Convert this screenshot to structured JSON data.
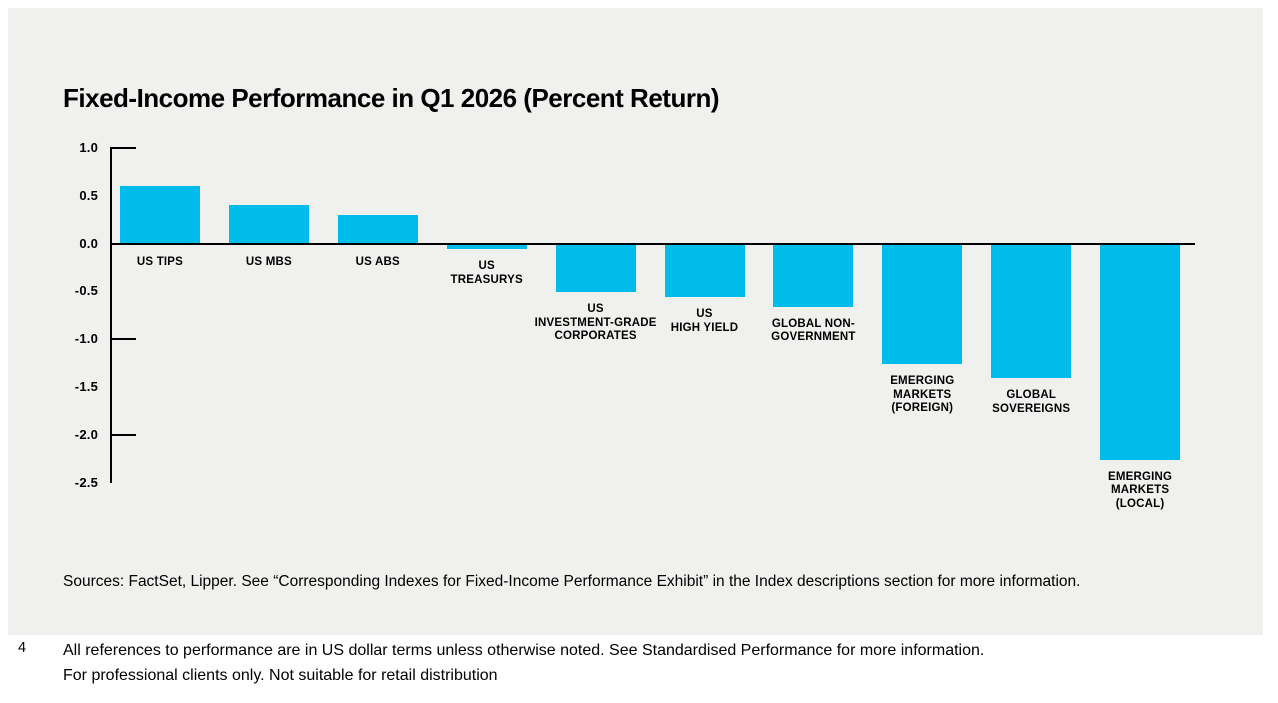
{
  "colors": {
    "panel_bg": "#F0F0EE",
    "page_bg": "#FFFFFF",
    "bar": "#00BCEB",
    "axis": "#000000",
    "text": "#000000"
  },
  "chart_data": {
    "type": "bar",
    "title": "Fixed-Income Performance in Q1 2026 (Percent Return)",
    "categories": [
      "US TIPS",
      "US MBS",
      "US ABS",
      "US TREASURYS",
      "US INVESTMENT-GRADE CORPORATES",
      "US HIGH YIELD",
      "GLOBAL NON-GOVERNMENT",
      "EMERGING MARKETS (FOREIGN)",
      "GLOBAL SOVEREIGNS",
      "EMERGING MARKETS (LOCAL)"
    ],
    "category_label_lines": [
      [
        "US TIPS"
      ],
      [
        "US MBS"
      ],
      [
        "US ABS"
      ],
      [
        "US",
        "TREASURYS"
      ],
      [
        "US",
        "INVESTMENT-GRADE",
        "CORPORATES"
      ],
      [
        "US",
        "HIGH YIELD"
      ],
      [
        "GLOBAL NON-",
        "GOVERNMENT"
      ],
      [
        "EMERGING",
        "MARKETS",
        "(FOREIGN)"
      ],
      [
        "GLOBAL",
        "SOVEREIGNS"
      ],
      [
        "EMERGING",
        "MARKETS",
        "(LOCAL)"
      ]
    ],
    "values": [
      0.6,
      0.4,
      0.3,
      -0.05,
      -0.5,
      -0.55,
      -0.65,
      -1.25,
      -1.4,
      -2.25
    ],
    "xlabel": "",
    "ylabel": "",
    "ylim": [
      -2.5,
      1.0
    ],
    "yticks": [
      1.0,
      0.5,
      0.0,
      -0.5,
      -1.0,
      -1.5,
      -2.0,
      -2.5
    ],
    "ytick_labels": [
      "1.0",
      "0.5",
      "0.0",
      "-0.5",
      "-1.0",
      "-1.5",
      "-2.0",
      "-2.5"
    ],
    "ytick_marks": [
      1.0,
      -1.0,
      -2.0
    ],
    "bar_color": "#00BCEB",
    "grid": false,
    "legend_position": "none"
  },
  "sources": "Sources: FactSet, Lipper. See “Corresponding Indexes for Fixed-Income Performance Exhibit” in the Index descriptions section for more information.",
  "footnote": {
    "number": "4",
    "line1": "All references to performance are in US dollar terms unless otherwise noted. See Standardised Performance for more information.",
    "line2": "For professional clients only. Not suitable for retail distribution"
  }
}
